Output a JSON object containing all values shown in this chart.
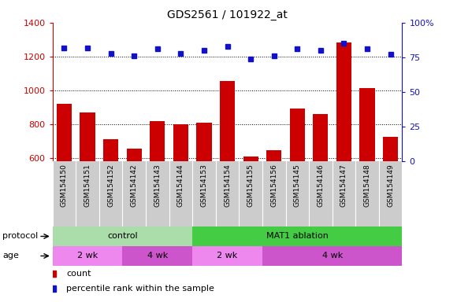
{
  "title": "GDS2561 / 101922_at",
  "samples": [
    "GSM154150",
    "GSM154151",
    "GSM154152",
    "GSM154142",
    "GSM154143",
    "GSM154144",
    "GSM154153",
    "GSM154154",
    "GSM154155",
    "GSM154156",
    "GSM154145",
    "GSM154146",
    "GSM154147",
    "GSM154148",
    "GSM154149"
  ],
  "counts": [
    920,
    868,
    710,
    658,
    820,
    800,
    808,
    1055,
    608,
    648,
    893,
    862,
    1282,
    1012,
    725
  ],
  "percentile_ranks": [
    82,
    82,
    78,
    76,
    81,
    78,
    80,
    83,
    74,
    76,
    81,
    80,
    85,
    81,
    77
  ],
  "ylim_left": [
    580,
    1400
  ],
  "ylim_right": [
    0,
    100
  ],
  "yticks_left": [
    600,
    800,
    1000,
    1200,
    1400
  ],
  "yticks_right": [
    0,
    25,
    50,
    75,
    100
  ],
  "bar_color": "#cc0000",
  "dot_color": "#1111cc",
  "bar_bottom": 580,
  "protocol_groups": [
    {
      "label": "control",
      "start": 0,
      "end": 6,
      "color": "#aaddaa"
    },
    {
      "label": "MAT1 ablation",
      "start": 6,
      "end": 15,
      "color": "#44cc44"
    }
  ],
  "age_groups": [
    {
      "label": "2 wk",
      "start": 0,
      "end": 3,
      "color": "#ee88ee"
    },
    {
      "label": "4 wk",
      "start": 3,
      "end": 6,
      "color": "#cc55cc"
    },
    {
      "label": "2 wk",
      "start": 6,
      "end": 9,
      "color": "#ee88ee"
    },
    {
      "label": "4 wk",
      "start": 9,
      "end": 15,
      "color": "#cc55cc"
    }
  ],
  "protocol_label": "protocol",
  "age_label": "age",
  "legend_count_label": "count",
  "legend_pct_label": "percentile rank within the sample",
  "bg_color": "#ffffff"
}
